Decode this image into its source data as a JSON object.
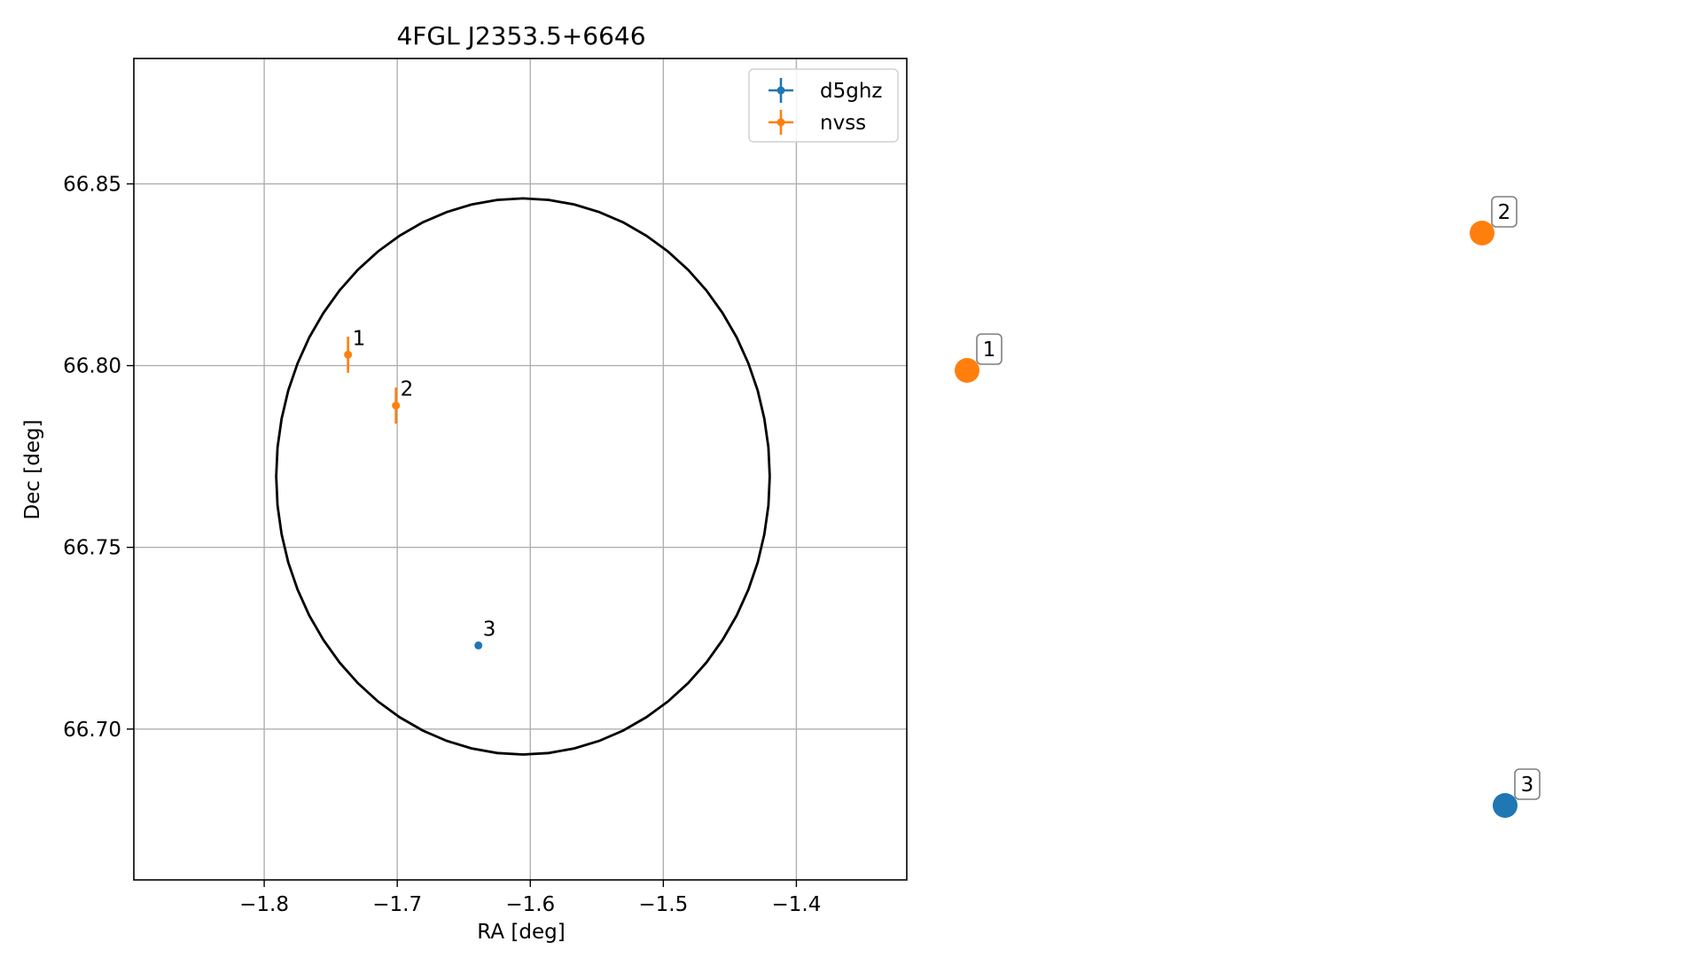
{
  "chart_data": {
    "type": "scatter",
    "title": "4FGL J2353.5+6646",
    "xlabel": "RA [deg]",
    "ylabel": "Dec [deg]",
    "xlim": [
      -1.898,
      -1.317
    ],
    "ylim": [
      66.6585,
      66.8845
    ],
    "x_ticks": [
      -1.8,
      -1.7,
      -1.6,
      -1.5,
      -1.4
    ],
    "x_tick_labels": [
      "−1.8",
      "−1.7",
      "−1.6",
      "−1.5",
      "−1.4"
    ],
    "y_ticks": [
      66.7,
      66.75,
      66.8,
      66.85
    ],
    "y_tick_labels": [
      "66.70",
      "66.75",
      "66.80",
      "66.85"
    ],
    "grid": true,
    "legend_position": "top-right",
    "series": [
      {
        "name": "d5ghz",
        "color": "#1f77b4",
        "points": [
          {
            "label": "3",
            "x": -1.639,
            "y": 66.723,
            "yerr": 0.0
          }
        ]
      },
      {
        "name": "nvss",
        "color": "#ff7f0e",
        "points": [
          {
            "label": "1",
            "x": -1.737,
            "y": 66.803,
            "yerr": 0.004
          },
          {
            "label": "2",
            "x": -1.701,
            "y": 66.789,
            "yerr": 0.004
          }
        ]
      }
    ],
    "ellipse": {
      "center": [
        -1.6055,
        66.7695
      ],
      "radius_x": 0.1855,
      "radius_y": 0.0765,
      "color": "#000000"
    },
    "side_panel": [
      {
        "label": "1",
        "color": "#ff7f0e"
      },
      {
        "label": "2",
        "color": "#ff7f0e"
      },
      {
        "label": "3",
        "color": "#1f77b4"
      }
    ]
  }
}
